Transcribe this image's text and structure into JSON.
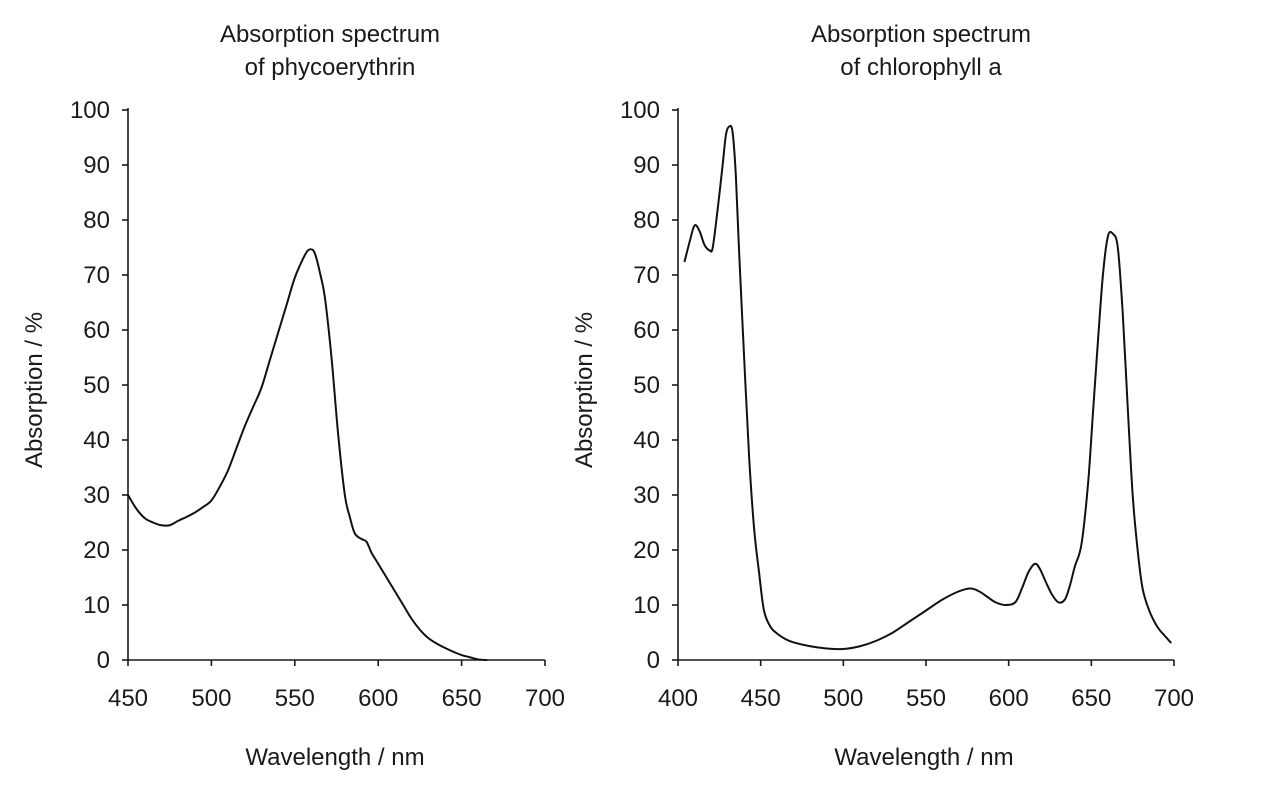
{
  "chart_data": [
    {
      "type": "line",
      "title_lines": [
        "Absorption spectrum",
        "of phycoerythrin"
      ],
      "xlabel": "Wavelength / nm",
      "ylabel": "Absorption / %",
      "xlim": [
        450,
        700
      ],
      "ylim": [
        0,
        100
      ],
      "xticks": [
        450,
        500,
        550,
        600,
        650,
        700
      ],
      "yticks": [
        0,
        10,
        20,
        30,
        40,
        50,
        60,
        70,
        80,
        90,
        100
      ],
      "grid": false,
      "legend": "none",
      "series": [
        {
          "x": [
            450,
            455,
            460,
            465,
            470,
            475,
            480,
            485,
            490,
            495,
            500,
            505,
            510,
            515,
            520,
            525,
            530,
            535,
            540,
            545,
            550,
            555,
            558,
            561,
            563,
            565,
            568,
            572,
            576,
            580,
            583,
            586,
            590,
            593,
            596,
            600,
            605,
            610,
            615,
            620,
            625,
            630,
            635,
            640,
            645,
            650,
            655,
            660,
            665
          ],
          "y": [
            30,
            27.5,
            25.8,
            25,
            24.5,
            24.5,
            25.3,
            26,
            26.8,
            27.8,
            29,
            31.5,
            34.5,
            38.5,
            42.5,
            46,
            49.5,
            54.5,
            59.5,
            64.5,
            69.5,
            73,
            74.5,
            74.5,
            73,
            70.5,
            66,
            55,
            41,
            30,
            26,
            23,
            22,
            21.5,
            19.5,
            17.5,
            15,
            12.5,
            10,
            7.5,
            5.5,
            4,
            3,
            2.2,
            1.5,
            0.9,
            0.5,
            0.1,
            0
          ]
        }
      ]
    },
    {
      "type": "line",
      "title_lines": [
        "Absorption spectrum",
        "of chlorophyll a"
      ],
      "xlabel": "Wavelength / nm",
      "ylabel": "Absorption / %",
      "xlim": [
        400,
        700
      ],
      "ylim": [
        0,
        100
      ],
      "xticks": [
        400,
        450,
        500,
        550,
        600,
        650,
        700
      ],
      "yticks": [
        0,
        10,
        20,
        30,
        40,
        50,
        60,
        70,
        80,
        90,
        100
      ],
      "grid": false,
      "legend": "none",
      "series": [
        {
          "x": [
            404,
            407,
            410,
            413,
            416,
            419,
            421,
            424,
            427,
            429,
            431,
            433,
            435,
            437,
            440,
            443,
            446,
            449,
            452,
            456,
            460,
            465,
            470,
            480,
            490,
            500,
            510,
            520,
            530,
            540,
            550,
            560,
            570,
            577,
            582,
            587,
            592,
            598,
            604,
            608,
            612,
            616,
            619,
            622,
            626,
            630,
            634,
            637,
            640,
            644,
            648,
            651,
            654,
            657,
            660,
            663,
            666,
            669,
            672,
            675,
            678,
            681,
            685,
            690,
            695,
            698
          ],
          "y": [
            72.5,
            76,
            79,
            78,
            75.5,
            74.5,
            75,
            82,
            90,
            95.5,
            97,
            96,
            88,
            74,
            55,
            37,
            24,
            16,
            9,
            6,
            4.8,
            3.8,
            3.2,
            2.5,
            2.1,
            2,
            2.5,
            3.5,
            5,
            7,
            9,
            11,
            12.5,
            13,
            12.5,
            11.5,
            10.5,
            10,
            10.5,
            13,
            16,
            17.5,
            16.5,
            14.5,
            12,
            10.5,
            11,
            13.5,
            17,
            21,
            32,
            45,
            58,
            70,
            77,
            77.5,
            75,
            63,
            46,
            30,
            20,
            13,
            9,
            6,
            4.2,
            3.2
          ]
        }
      ]
    }
  ]
}
